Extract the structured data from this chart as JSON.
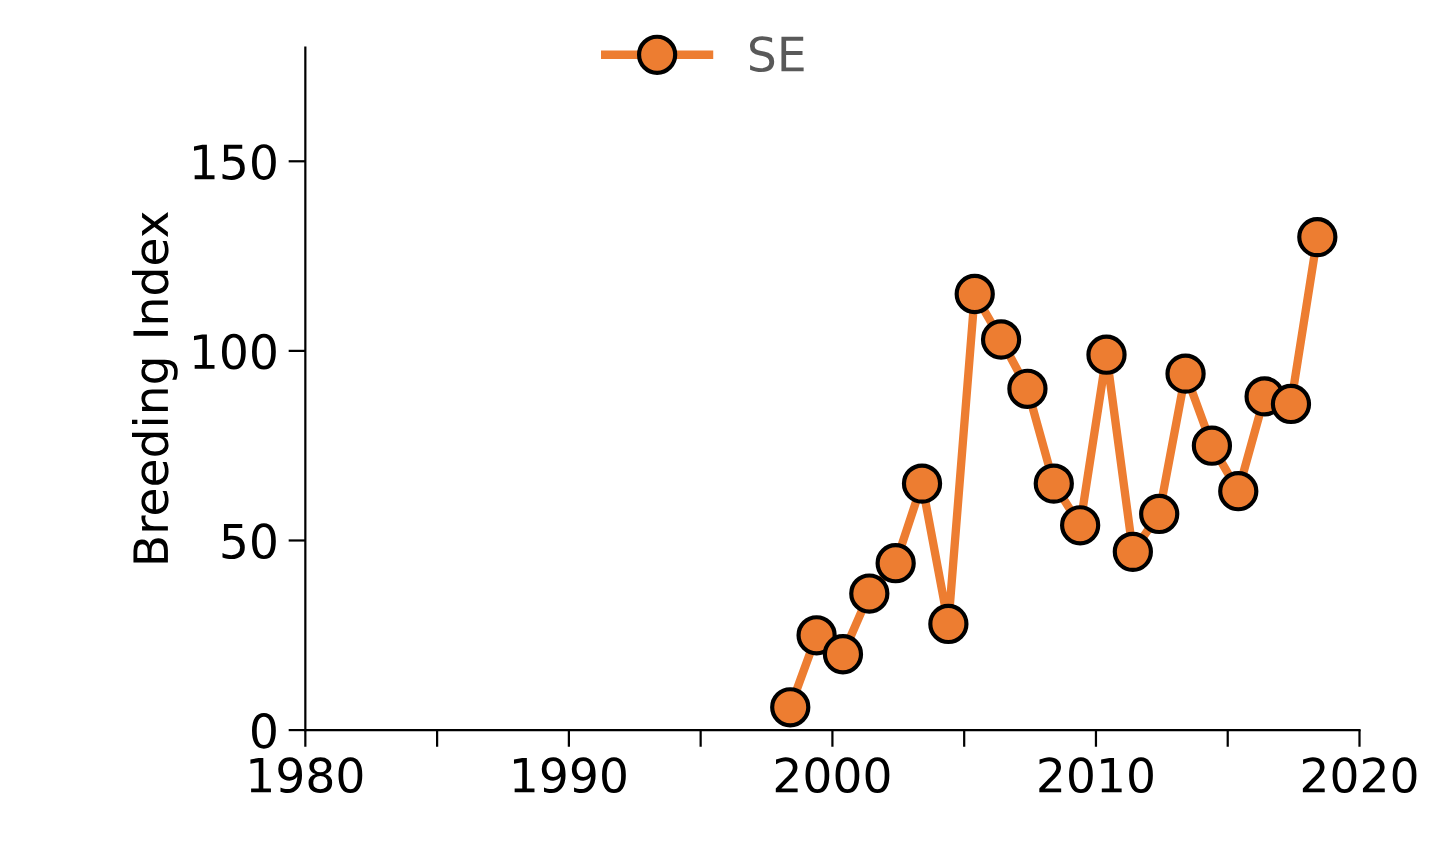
{
  "chart_data": {
    "type": "line",
    "ylabel": "Breeding Index",
    "x": [
      1998.4,
      1999.4,
      2000.4,
      2001.4,
      2002.4,
      2003.4,
      2004.4,
      2005.4,
      2006.4,
      2007.4,
      2008.4,
      2009.4,
      2010.4,
      2011.4,
      2012.4,
      2013.4,
      2014.4,
      2015.4,
      2016.4,
      2017.4,
      2018.4
    ],
    "series": [
      {
        "name": "SE",
        "color": "#ed7d31",
        "values": [
          6,
          25,
          20,
          36,
          44,
          65,
          28,
          115,
          103,
          90,
          65,
          54,
          99,
          47,
          57,
          94,
          75,
          63,
          88,
          86,
          130
        ]
      }
    ],
    "xlim": [
      1980,
      2020
    ],
    "xticks": [
      1980,
      {
        "value": 1985,
        "label": null
      },
      1990,
      {
        "value": 1995,
        "label": null
      },
      2000,
      {
        "value": 2005,
        "label": null
      },
      2010,
      {
        "value": 2015,
        "label": null
      },
      2020
    ],
    "ylim": [
      0,
      180
    ],
    "yticks": [
      0,
      50,
      100,
      150
    ],
    "grid": false,
    "legend": "top",
    "marker": "circle",
    "line_style": "solid"
  }
}
